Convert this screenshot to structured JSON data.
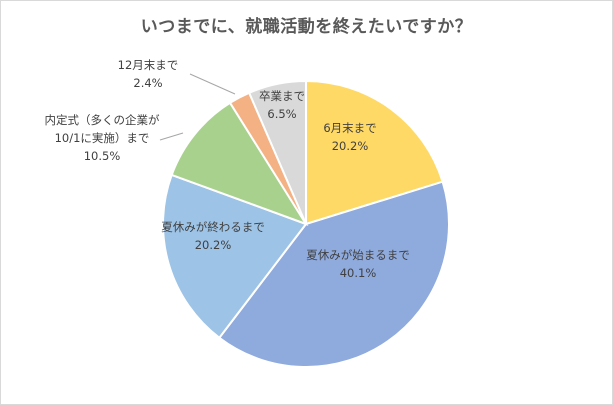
{
  "chart_data": {
    "type": "pie",
    "title": "いつまでに、就職活動を終えたいですか？",
    "slices": [
      {
        "label": "6月末まで",
        "value": 20.2,
        "display": "20.2%",
        "color": "#ffd966"
      },
      {
        "label": "夏休みが始まるまで",
        "value": 40.1,
        "display": "40.1%",
        "color": "#8faadc"
      },
      {
        "label": "夏休みが終わるまで",
        "value": 20.2,
        "display": "20.2%",
        "color": "#9dc3e6"
      },
      {
        "label": "内定式（多くの企業が10/1に実施）まで",
        "label_lines": [
          "内定式（多くの企業が",
          "10/1に実施）まで"
        ],
        "value": 10.5,
        "display": "10.5%",
        "color": "#a9d18e"
      },
      {
        "label": "12月末まで",
        "value": 2.4,
        "display": "2.4%",
        "color": "#f4b183"
      },
      {
        "label": "卒業まで",
        "value": 6.5,
        "display": "6.5%",
        "color": "#d9d9d9"
      }
    ]
  }
}
